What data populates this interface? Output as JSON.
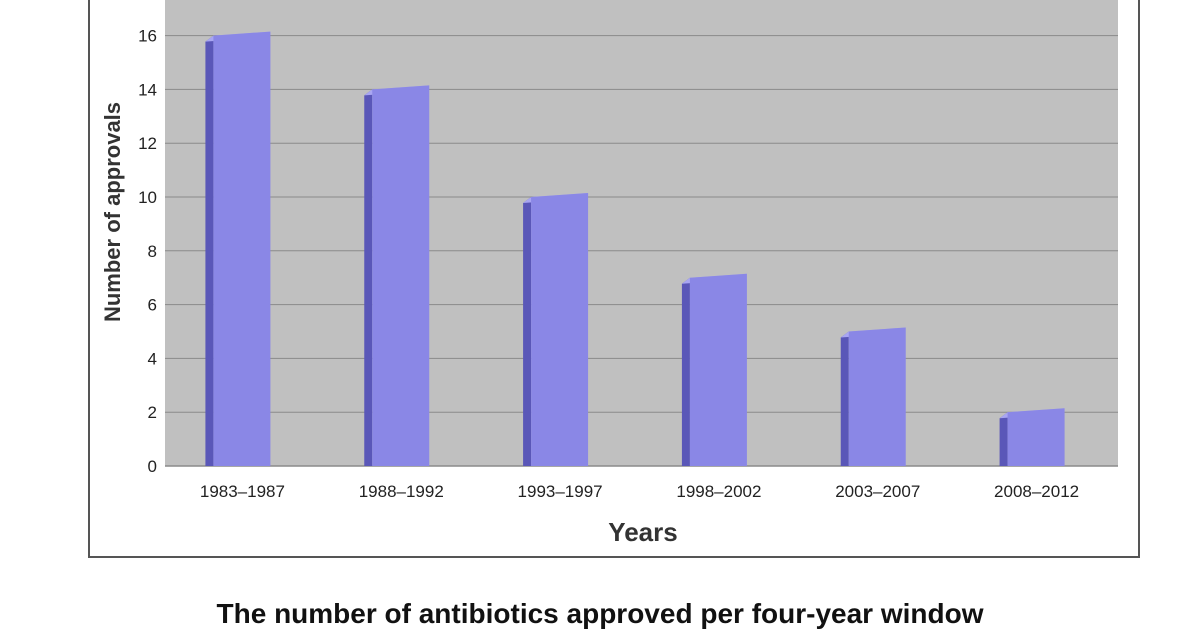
{
  "caption": "The number of antibiotics approved per four-year window",
  "colors": {
    "plot_background": "#c0c0c0",
    "gridline": "#8a8a8a",
    "bar_front": "#8a87e6",
    "bar_side": "#5a57b8",
    "bar_top": "#a9a6f2"
  },
  "chart_data": {
    "type": "bar",
    "categories": [
      "1983–1987",
      "1988–1992",
      "1993–1997",
      "1998–2002",
      "2003–2007",
      "2008–2012"
    ],
    "values": [
      16,
      14,
      10,
      7,
      5,
      2
    ],
    "xlabel": "Years",
    "ylabel": "Number of approvals",
    "yticks": [
      0,
      2,
      4,
      6,
      8,
      10,
      12,
      14,
      16
    ],
    "ylim": [
      0,
      17
    ],
    "grid": true,
    "legend": "none",
    "style": "3d-column"
  }
}
